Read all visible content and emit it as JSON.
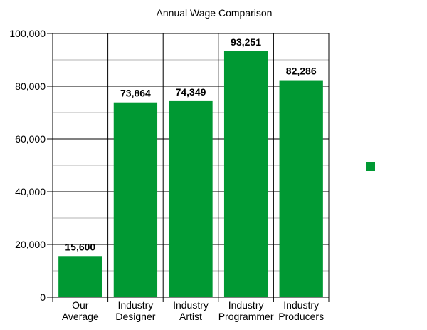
{
  "chart_data": {
    "type": "bar",
    "title": "Annual Wage Comparison",
    "xlabel": "",
    "ylabel": "",
    "categories": [
      [
        "Our",
        "Average"
      ],
      [
        "Industry",
        "Designer"
      ],
      [
        "Industry",
        "Artist"
      ],
      [
        "Industry",
        "Programmer"
      ],
      [
        "Industry",
        "Producers"
      ]
    ],
    "series": [
      {
        "values": [
          15600,
          73864,
          74349,
          93251,
          82286
        ]
      }
    ],
    "value_labels": [
      "15,600",
      "73,864",
      "74,349",
      "93,251",
      "82,286"
    ],
    "ylim": [
      0,
      100000
    ],
    "yticks": [
      0,
      20000,
      40000,
      60000,
      80000,
      100000
    ],
    "ytick_labels": [
      "0",
      "20,000",
      "40,000",
      "60,000",
      "80,000",
      "100,000"
    ],
    "minor_grid_step": 10000,
    "grid": true,
    "bar_color": "#009933",
    "legend": {
      "placement": "right",
      "entries": [
        {
          "color": "#009933"
        }
      ]
    }
  }
}
